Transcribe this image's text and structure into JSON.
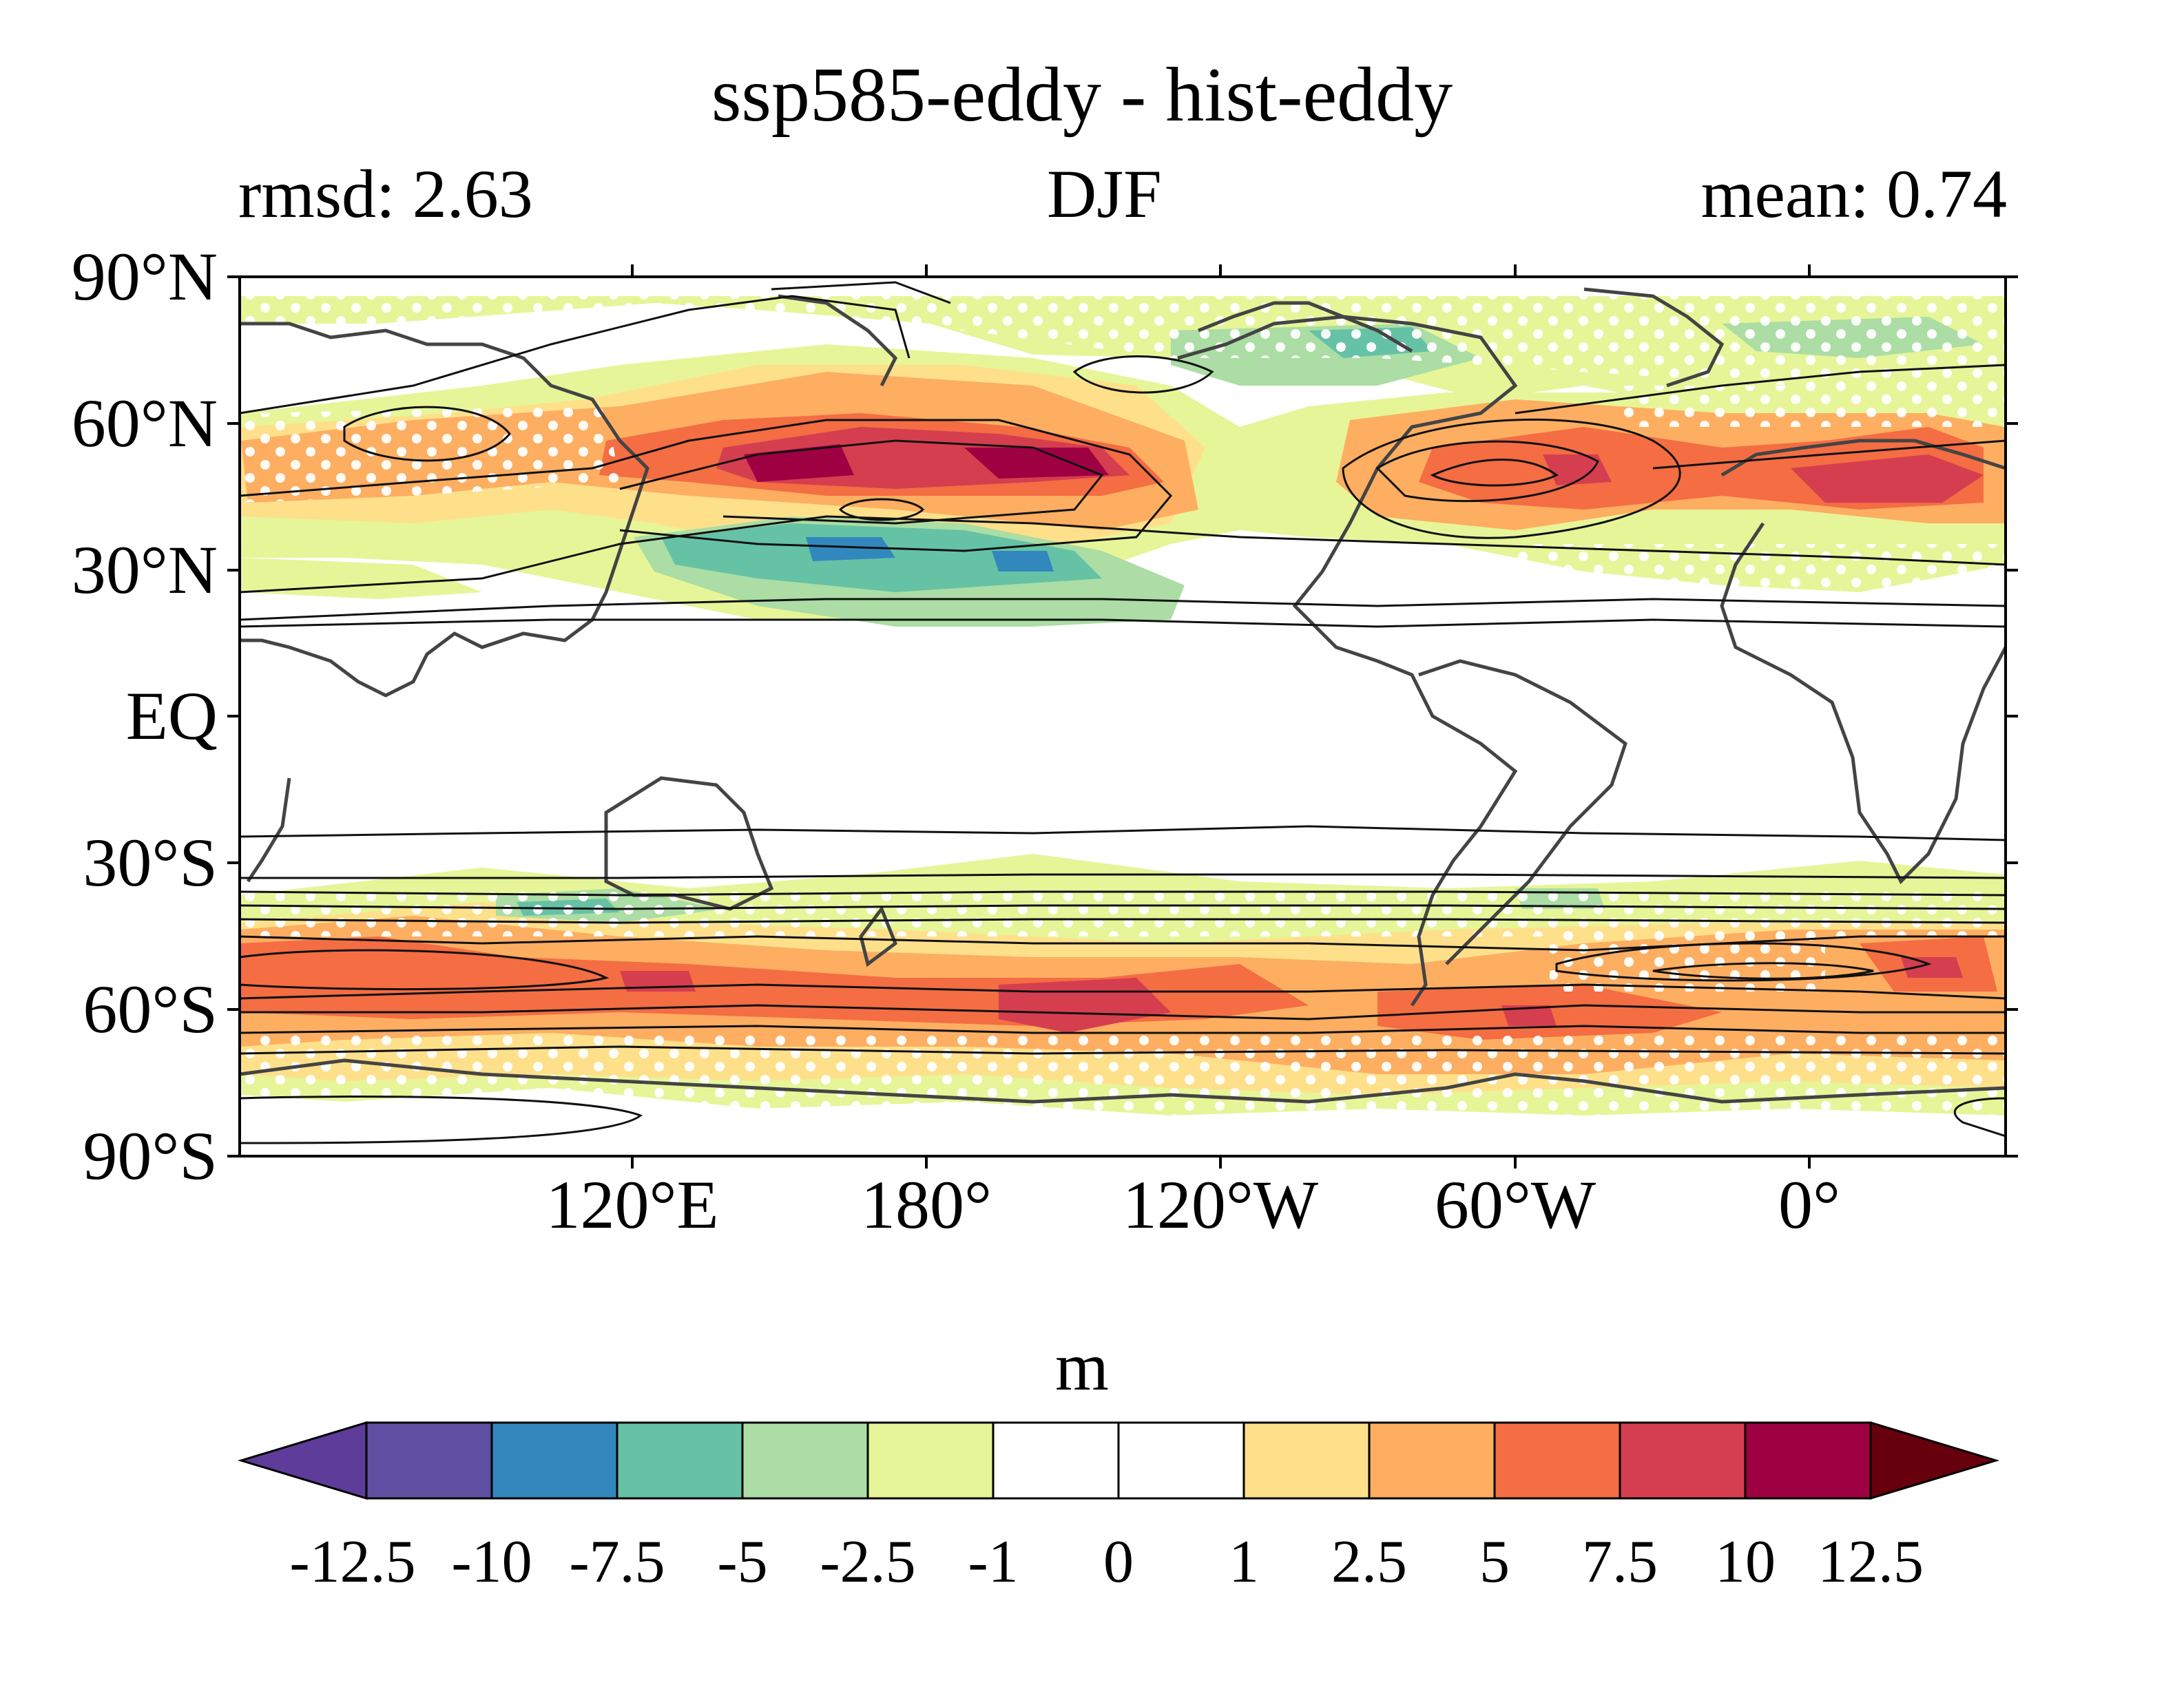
{
  "title": "ssp585-eddy - hist-eddy",
  "subtitle_left": "rmsd: 2.63",
  "subtitle_center": "DJF",
  "subtitle_right": "mean: 0.74",
  "map": {
    "projection": "equirectangular",
    "central_longitude": "150°W",
    "lat_labels": [
      "90°N",
      "60°N",
      "30°N",
      "EQ",
      "30°S",
      "60°S",
      "90°S"
    ],
    "lon_labels": [
      "120°E",
      "180°",
      "120°W",
      "60°W",
      "0°"
    ],
    "stippling": "white dots",
    "contours": "black lines",
    "coastlines": "dark grey"
  },
  "colorbar": {
    "units": "m",
    "labels": [
      "-12.5",
      "-10",
      "-7.5",
      "-5",
      "-2.5",
      "-1",
      "0",
      "1",
      "2.5",
      "5",
      "7.5",
      "10",
      "12.5"
    ],
    "colors": [
      "#5e3c99",
      "#5e4fa2",
      "#3288bd",
      "#66c2a5",
      "#abdda4",
      "#e6f598",
      "#ffffff",
      "#ffffff",
      "#fee08b",
      "#fdae61",
      "#f46d43",
      "#d53e4f",
      "#9e0142",
      "#67000d"
    ]
  }
}
